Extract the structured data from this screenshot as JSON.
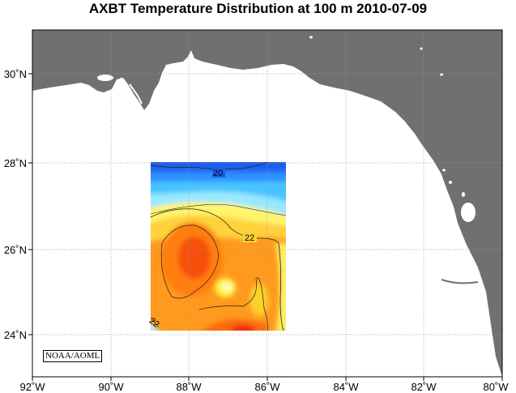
{
  "title": "AXBT Temperature Distribution at 100 m  2010-07-09",
  "credit": "NOAA/AOML",
  "colors": {
    "land": "#707070",
    "water": "#ffffff",
    "frame": "#000000",
    "grid": "#999999"
  },
  "x_ticks": [
    "92˚W",
    "90˚W",
    "88˚W",
    "86˚W",
    "84˚W",
    "82˚W",
    "80˚W"
  ],
  "y_ticks": [
    "30˚N",
    "28˚N",
    "26˚N",
    "24˚N"
  ],
  "contour_labels": [
    "20",
    "22",
    "22"
  ],
  "extent": {
    "lon": [
      -92,
      -80
    ],
    "lat": [
      23,
      31
    ]
  }
}
